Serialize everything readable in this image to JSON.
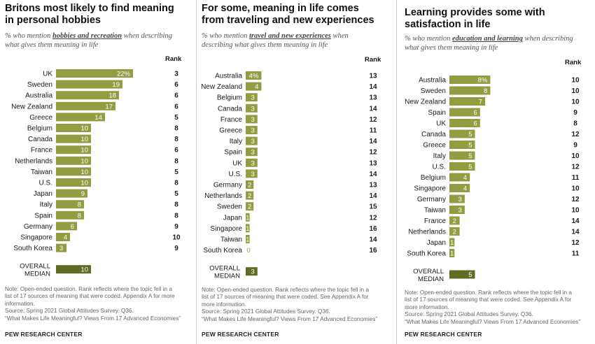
{
  "colors": {
    "bar": "#949c42",
    "median_bar": "#626b22",
    "bar_text": "#ffffff",
    "zero_text": "#949c42"
  },
  "shared": {
    "rank_header": "Rank",
    "median_label_line1": "OVERALL",
    "median_label_line2": "MEDIAN",
    "footer": "PEW RESEARCH CENTER"
  },
  "panels": [
    {
      "title": "Britons most likely to find meaning in personal hobbies",
      "subtitle_pre": "% who mention ",
      "subtitle_highlight": "hobbies and recreation",
      "subtitle_post": " when describing what gives them meaning in life",
      "notes": [
        "Note: Open-ended question. Rank reflects where the topic fell in a",
        "list of 17 sources of meaning that were coded. Appendix A for more",
        "information.",
        "Source: Spring 2021 Global Attitudes Survey. Q36.",
        "“What Makes Life Meaningful? Views From 17 Advanced Economies”"
      ]
    },
    {
      "title": "For some, meaning in life comes from traveling and new experiences",
      "subtitle_pre": "% who mention ",
      "subtitle_highlight": "travel and new experiences",
      "subtitle_post": " when describing what gives them meaning in life",
      "notes": [
        "Note: Open-ended question. Rank reflects where the topic fell in a",
        "list of 17 sources of meaning that were coded. See Appendix A for",
        "more information.",
        "Source: Spring 2021 Global Attitudes Survey. Q36.",
        "“What Makes Life Meaningful? Views From 17 Advanced Economies”"
      ]
    },
    {
      "title": "Learning provides some with satisfaction in life",
      "subtitle_pre": "% who mention ",
      "subtitle_highlight": "education and learning",
      "subtitle_post": " when describing what gives them meaning in life",
      "notes": [
        "Note: Open-ended question. Rank reflects where the topic fell in a",
        "list of 17 sources of meaning that were coded. See Appendix A for",
        "more information.",
        "Source: Spring 2021 Global Attitudes Survey. Q36.",
        "“What Makes Life Meaningful? Views From 17 Advanced Economies”"
      ]
    }
  ],
  "chart_data": [
    {
      "type": "bar",
      "orientation": "horizontal",
      "title": "Britons most likely to find meaning in personal hobbies",
      "topic": "hobbies and recreation",
      "unit": "%",
      "categories": [
        "UK",
        "Sweden",
        "Australia",
        "New Zealand",
        "Greece",
        "Belgium",
        "Canada",
        "France",
        "Netherlands",
        "Taiwan",
        "U.S.",
        "Japan",
        "Italy",
        "Spain",
        "Germany",
        "Singapore",
        "South Korea"
      ],
      "values": [
        22,
        19,
        18,
        17,
        14,
        10,
        10,
        10,
        10,
        10,
        10,
        9,
        8,
        8,
        6,
        4,
        3
      ],
      "value_labels": [
        "22%",
        "19",
        "18",
        "17",
        "14",
        "10",
        "10",
        "10",
        "10",
        "10",
        "10",
        "9",
        "8",
        "8",
        "6",
        "4",
        "3"
      ],
      "ranks": [
        "3",
        "6",
        "6",
        "6",
        "5",
        "8",
        "8",
        "6",
        "8",
        "5",
        "8",
        "5",
        "8",
        "8",
        "9",
        "10",
        "9"
      ],
      "median": {
        "label": "OVERALL MEDIAN",
        "value": 10,
        "value_label": "10"
      }
    },
    {
      "type": "bar",
      "orientation": "horizontal",
      "title": "For some, meaning in life comes from traveling and new experiences",
      "topic": "travel and new experiences",
      "unit": "%",
      "categories": [
        "Australia",
        "New Zealand",
        "Belgium",
        "Canada",
        "France",
        "Greece",
        "Italy",
        "Spain",
        "UK",
        "U.S.",
        "Germany",
        "Netherlands",
        "Sweden",
        "Japan",
        "Singapore",
        "Taiwan",
        "South Korea"
      ],
      "values": [
        4,
        4,
        3,
        3,
        3,
        3,
        3,
        3,
        3,
        3,
        2,
        2,
        2,
        1,
        1,
        1,
        0
      ],
      "value_labels": [
        "4%",
        "4",
        "3",
        "3",
        "3",
        "3",
        "3",
        "3",
        "3",
        "3",
        "2",
        "2",
        "2",
        "1",
        "1",
        "1",
        "0"
      ],
      "ranks": [
        "13",
        "14",
        "13",
        "14",
        "12",
        "11",
        "14",
        "12",
        "13",
        "14",
        "13",
        "14",
        "15",
        "12",
        "16",
        "14",
        "16"
      ],
      "median": {
        "label": "OVERALL MEDIAN",
        "value": 3,
        "value_label": "3"
      }
    },
    {
      "type": "bar",
      "orientation": "horizontal",
      "title": "Learning provides some with satisfaction in life",
      "topic": "education and learning",
      "unit": "%",
      "categories": [
        "Australia",
        "Sweden",
        "New Zealand",
        "Spain",
        "UK",
        "Canada",
        "Greece",
        "Italy",
        "U.S.",
        "Belgium",
        "Singapore",
        "Germany",
        "Taiwan",
        "France",
        "Netherlands",
        "Japan",
        "South Korea"
      ],
      "values": [
        8,
        8,
        7,
        6,
        6,
        5,
        5,
        5,
        5,
        4,
        4,
        3,
        3,
        2,
        2,
        1,
        1
      ],
      "value_labels": [
        "8%",
        "8",
        "7",
        "6",
        "6",
        "5",
        "5",
        "5",
        "5",
        "4",
        "4",
        "3",
        "3",
        "2",
        "2",
        "1",
        "1"
      ],
      "ranks": [
        "10",
        "10",
        "10",
        "9",
        "8",
        "12",
        "9",
        "10",
        "12",
        "11",
        "10",
        "12",
        "10",
        "14",
        "14",
        "12",
        "11"
      ],
      "median": {
        "label": "OVERALL MEDIAN",
        "value": 5,
        "value_label": "5"
      }
    }
  ]
}
